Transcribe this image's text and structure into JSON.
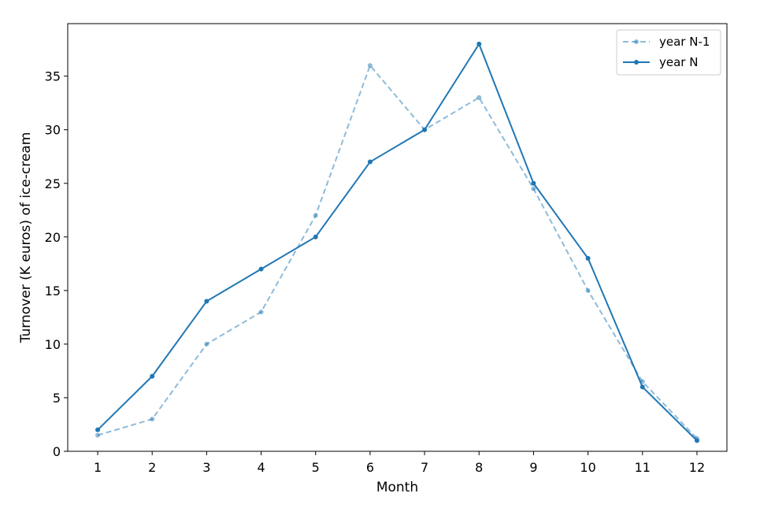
{
  "chart_data": {
    "type": "line",
    "title": "",
    "xlabel": "Month",
    "ylabel": "Turnover (K euros) of ice-cream",
    "x": [
      1,
      2,
      3,
      4,
      5,
      6,
      7,
      8,
      9,
      10,
      11,
      12
    ],
    "xticks": [
      "1",
      "2",
      "3",
      "4",
      "5",
      "6",
      "7",
      "8",
      "9",
      "10",
      "11",
      "12"
    ],
    "yticks": [
      "0",
      "5",
      "10",
      "15",
      "20",
      "25",
      "30",
      "35"
    ],
    "xlim": [
      0.45,
      12.55
    ],
    "ylim": [
      0,
      39.9
    ],
    "grid": false,
    "legend_position": "top-right",
    "series": [
      {
        "name": "year N-1",
        "values": [
          1.5,
          3,
          10,
          13,
          22,
          36,
          30,
          33,
          24.5,
          15,
          6.5,
          1.2
        ],
        "style": "dashed",
        "color": "#1f77b4",
        "opacity": 0.5
      },
      {
        "name": "year N",
        "values": [
          2,
          7,
          14,
          17,
          20,
          27,
          30,
          38,
          25,
          18,
          6,
          1
        ],
        "style": "solid",
        "color": "#1f77b4",
        "opacity": 1
      }
    ]
  }
}
